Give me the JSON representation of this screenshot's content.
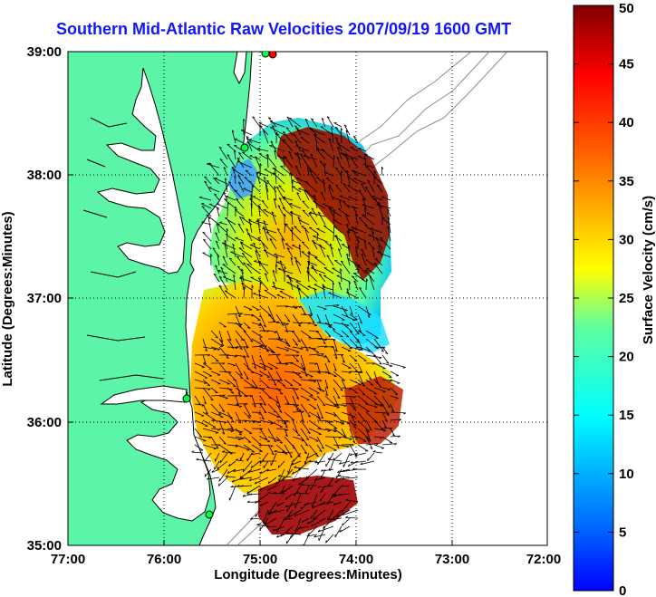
{
  "title": "Southern Mid-Atlantic Raw Velocities 2007/09/19 1600 GMT",
  "map": {
    "xlabel": "Longitude (Degrees:Minutes)",
    "ylabel": "Latitude (Degrees:Minutes)",
    "x_ticks": [
      "77:00",
      "76:00",
      "75:00",
      "74:00",
      "73:00",
      "72:00"
    ],
    "y_ticks": [
      "39:00",
      "38:00",
      "37:00",
      "36:00",
      "35:00"
    ],
    "lon_range": [
      -77,
      -72
    ],
    "lat_range": [
      35,
      39
    ],
    "grid": "dotted",
    "land_color": "#5cf5a8",
    "coast_color": "#000000",
    "bathymetry_color": "#8c8c8c"
  },
  "colorbar": {
    "label": "Surface Velocity (cm/s)",
    "ticks": [
      "0",
      "5",
      "10",
      "15",
      "20",
      "25",
      "30",
      "35",
      "40",
      "45",
      "50"
    ],
    "range": [
      0,
      50
    ],
    "colormap": "jet"
  }
}
